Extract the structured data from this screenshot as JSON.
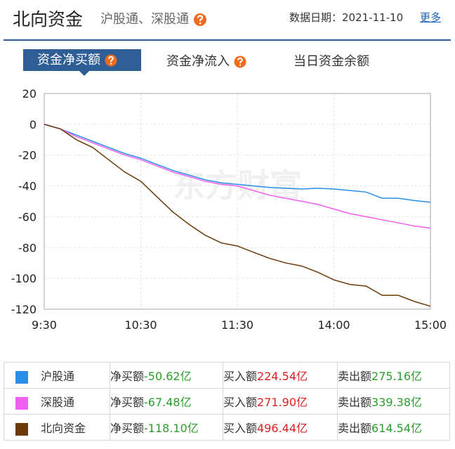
{
  "header": {
    "title": "北向资金",
    "subtitle": "沪股通、深股通",
    "date_label": "数据日期：",
    "date": "2021-11-10",
    "more": "更多"
  },
  "tabs": [
    "资金净买额",
    "资金净流入",
    "当日资金余额"
  ],
  "chart_data": {
    "type": "line",
    "watermark": "东方财富",
    "categories": [
      "9:30",
      null,
      null,
      null,
      null,
      null,
      "10:30",
      null,
      null,
      null,
      null,
      null,
      "11:30",
      null,
      null,
      null,
      null,
      null,
      "14:00",
      null,
      null,
      null,
      null,
      null,
      "15:00"
    ],
    "ylim": [
      -120,
      20
    ],
    "yticks": [
      20,
      0,
      -20,
      -40,
      -60,
      -80,
      -100,
      -120
    ],
    "grid": true,
    "series": [
      {
        "name": "沪股通",
        "color": "#2a8ee8",
        "values": [
          0,
          -3,
          -7,
          -11,
          -15,
          -19,
          -22,
          -26,
          -30,
          -33,
          -36,
          -38,
          -39,
          -40,
          -41,
          -41.5,
          -42,
          -41.5,
          -42,
          -43,
          -44,
          -48,
          -48,
          -49.5,
          -50.62
        ]
      },
      {
        "name": "深股通",
        "color": "#f060f0",
        "values": [
          0,
          -3,
          -8,
          -12,
          -16,
          -20,
          -23,
          -27,
          -31,
          -34,
          -37,
          -39,
          -40,
          -43,
          -46,
          -48,
          -50,
          -52,
          -55,
          -58,
          -60,
          -62,
          -64,
          -66,
          -67.48
        ]
      },
      {
        "name": "北向资金",
        "color": "#6b3a08",
        "values": [
          0,
          -3,
          -10,
          -15,
          -23,
          -31,
          -37,
          -47,
          -57,
          -65,
          -72,
          -77,
          -79,
          -83,
          -87,
          -90,
          -92,
          -96,
          -101,
          -104,
          -105,
          -111,
          -111,
          -115,
          -118.1
        ]
      }
    ]
  },
  "summary": {
    "rows": [
      {
        "net_label": "净买额",
        "net": "-50.62亿",
        "buy_label": "买入额",
        "buy": "224.54亿",
        "sell_label": "卖出额",
        "sell": "275.16亿"
      },
      {
        "net_label": "净买额",
        "net": "-67.48亿",
        "buy_label": "买入额",
        "buy": "271.90亿",
        "sell_label": "卖出额",
        "sell": "339.38亿"
      },
      {
        "net_label": "净买额",
        "net": "-118.10亿",
        "buy_label": "买入额",
        "buy": "496.44亿",
        "sell_label": "卖出额",
        "sell": "614.54亿"
      }
    ]
  }
}
